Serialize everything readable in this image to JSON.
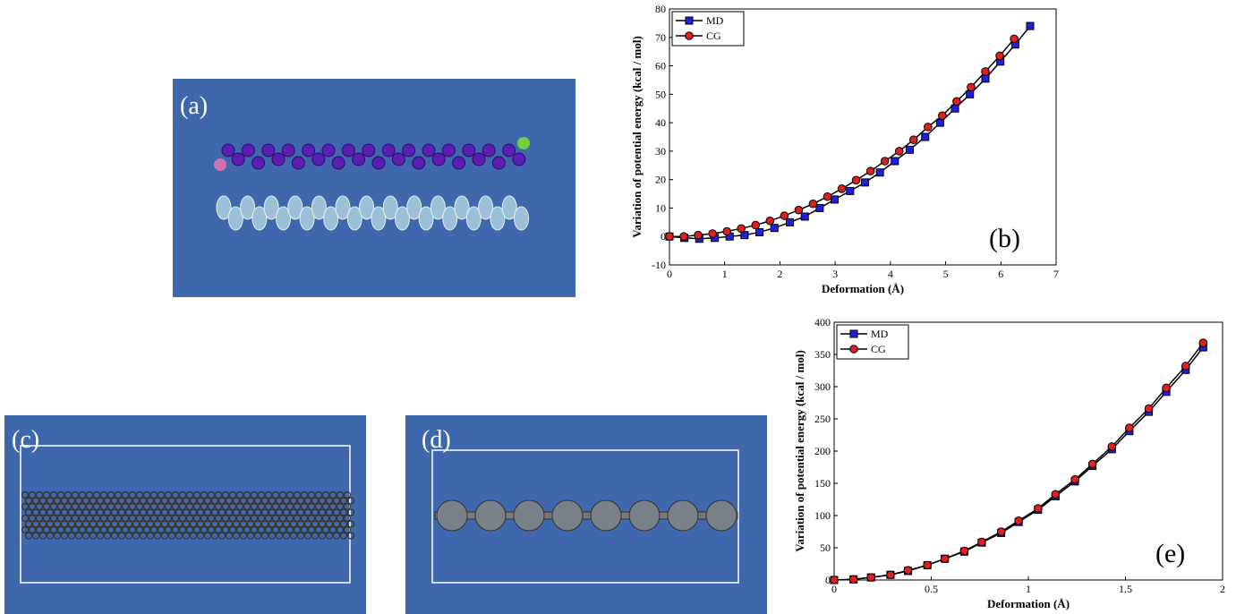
{
  "panels": [
    {
      "label": "(a)"
    },
    {
      "label": "(c)"
    },
    {
      "label": "(d)"
    }
  ],
  "chart_data": [
    {
      "type": "line",
      "annotation": "(b)",
      "x_label": "Deformation (Å)",
      "y_label": "Variation of potential energy (kcal / mol)",
      "xlim": [
        0,
        7
      ],
      "xticks": [
        0,
        1,
        2,
        3,
        4,
        5,
        6,
        7
      ],
      "ylim": [
        -10,
        80
      ],
      "yticks": [
        -10,
        0,
        10,
        20,
        30,
        40,
        50,
        60,
        70,
        80
      ],
      "legend": "upper left",
      "line_color": "#000000",
      "series": [
        {
          "name": "MD",
          "color": "#1f1fe0",
          "marker": "square",
          "x": [
            0,
            0.27,
            0.54,
            0.82,
            1.09,
            1.36,
            1.63,
            1.9,
            2.18,
            2.45,
            2.72,
            2.99,
            3.27,
            3.54,
            3.81,
            4.08,
            4.35,
            4.63,
            4.9,
            5.17,
            5.44,
            5.72,
            5.99,
            6.26,
            6.53
          ],
          "values": [
            0,
            -0.5,
            -0.8,
            -0.5,
            0,
            0.5,
            1.5,
            3,
            5,
            7,
            10,
            13,
            16,
            19,
            22.5,
            26.5,
            30.5,
            35,
            40,
            45,
            50,
            55.5,
            61.5,
            67.5,
            74
          ]
        },
        {
          "name": "CG",
          "color": "#e02020",
          "marker": "circle",
          "x": [
            0,
            0.26,
            0.52,
            0.78,
            1.04,
            1.3,
            1.56,
            1.82,
            2.08,
            2.34,
            2.6,
            2.86,
            3.12,
            3.38,
            3.64,
            3.9,
            4.16,
            4.42,
            4.68,
            4.94,
            5.2,
            5.46,
            5.72,
            5.98,
            6.24
          ],
          "values": [
            0,
            0,
            0.5,
            1,
            1.8,
            2.8,
            4,
            5.5,
            7.3,
            9.3,
            11.5,
            14,
            16.8,
            19.8,
            23,
            26.5,
            30,
            34,
            38.5,
            42.5,
            47.5,
            52.5,
            58,
            63.5,
            69.5
          ]
        }
      ]
    },
    {
      "type": "line",
      "annotation": "(e)",
      "x_label": "Deformation (Å)",
      "y_label": "Variation of potential energy (kcal / mol)",
      "xlim": [
        0,
        2
      ],
      "xticks": [
        0,
        0.5,
        1,
        1.5,
        2
      ],
      "ylim": [
        0,
        400
      ],
      "yticks": [
        0,
        50,
        100,
        150,
        200,
        250,
        300,
        350,
        400
      ],
      "legend": "upper left",
      "line_color": "#000000",
      "series": [
        {
          "name": "MD",
          "color": "#1f1fe0",
          "marker": "square",
          "x": [
            0,
            0.1,
            0.19,
            0.29,
            0.38,
            0.48,
            0.57,
            0.67,
            0.76,
            0.86,
            0.95,
            1.05,
            1.14,
            1.24,
            1.33,
            1.43,
            1.52,
            1.62,
            1.71,
            1.81,
            1.9
          ],
          "values": [
            0,
            1,
            4,
            8,
            14,
            23,
            33,
            44,
            58,
            73,
            90,
            109,
            130,
            153,
            177,
            203,
            231,
            261,
            292,
            326,
            361
          ]
        },
        {
          "name": "CG",
          "color": "#e02020",
          "marker": "circle",
          "x": [
            0,
            0.1,
            0.19,
            0.29,
            0.38,
            0.48,
            0.57,
            0.67,
            0.76,
            0.86,
            0.95,
            1.05,
            1.14,
            1.24,
            1.33,
            1.43,
            1.52,
            1.62,
            1.71,
            1.81,
            1.9
          ],
          "values": [
            0,
            1,
            4,
            8,
            15,
            23,
            33,
            45,
            59,
            75,
            92,
            111,
            133,
            156,
            180,
            207,
            236,
            266,
            298,
            332,
            368
          ]
        }
      ]
    }
  ]
}
